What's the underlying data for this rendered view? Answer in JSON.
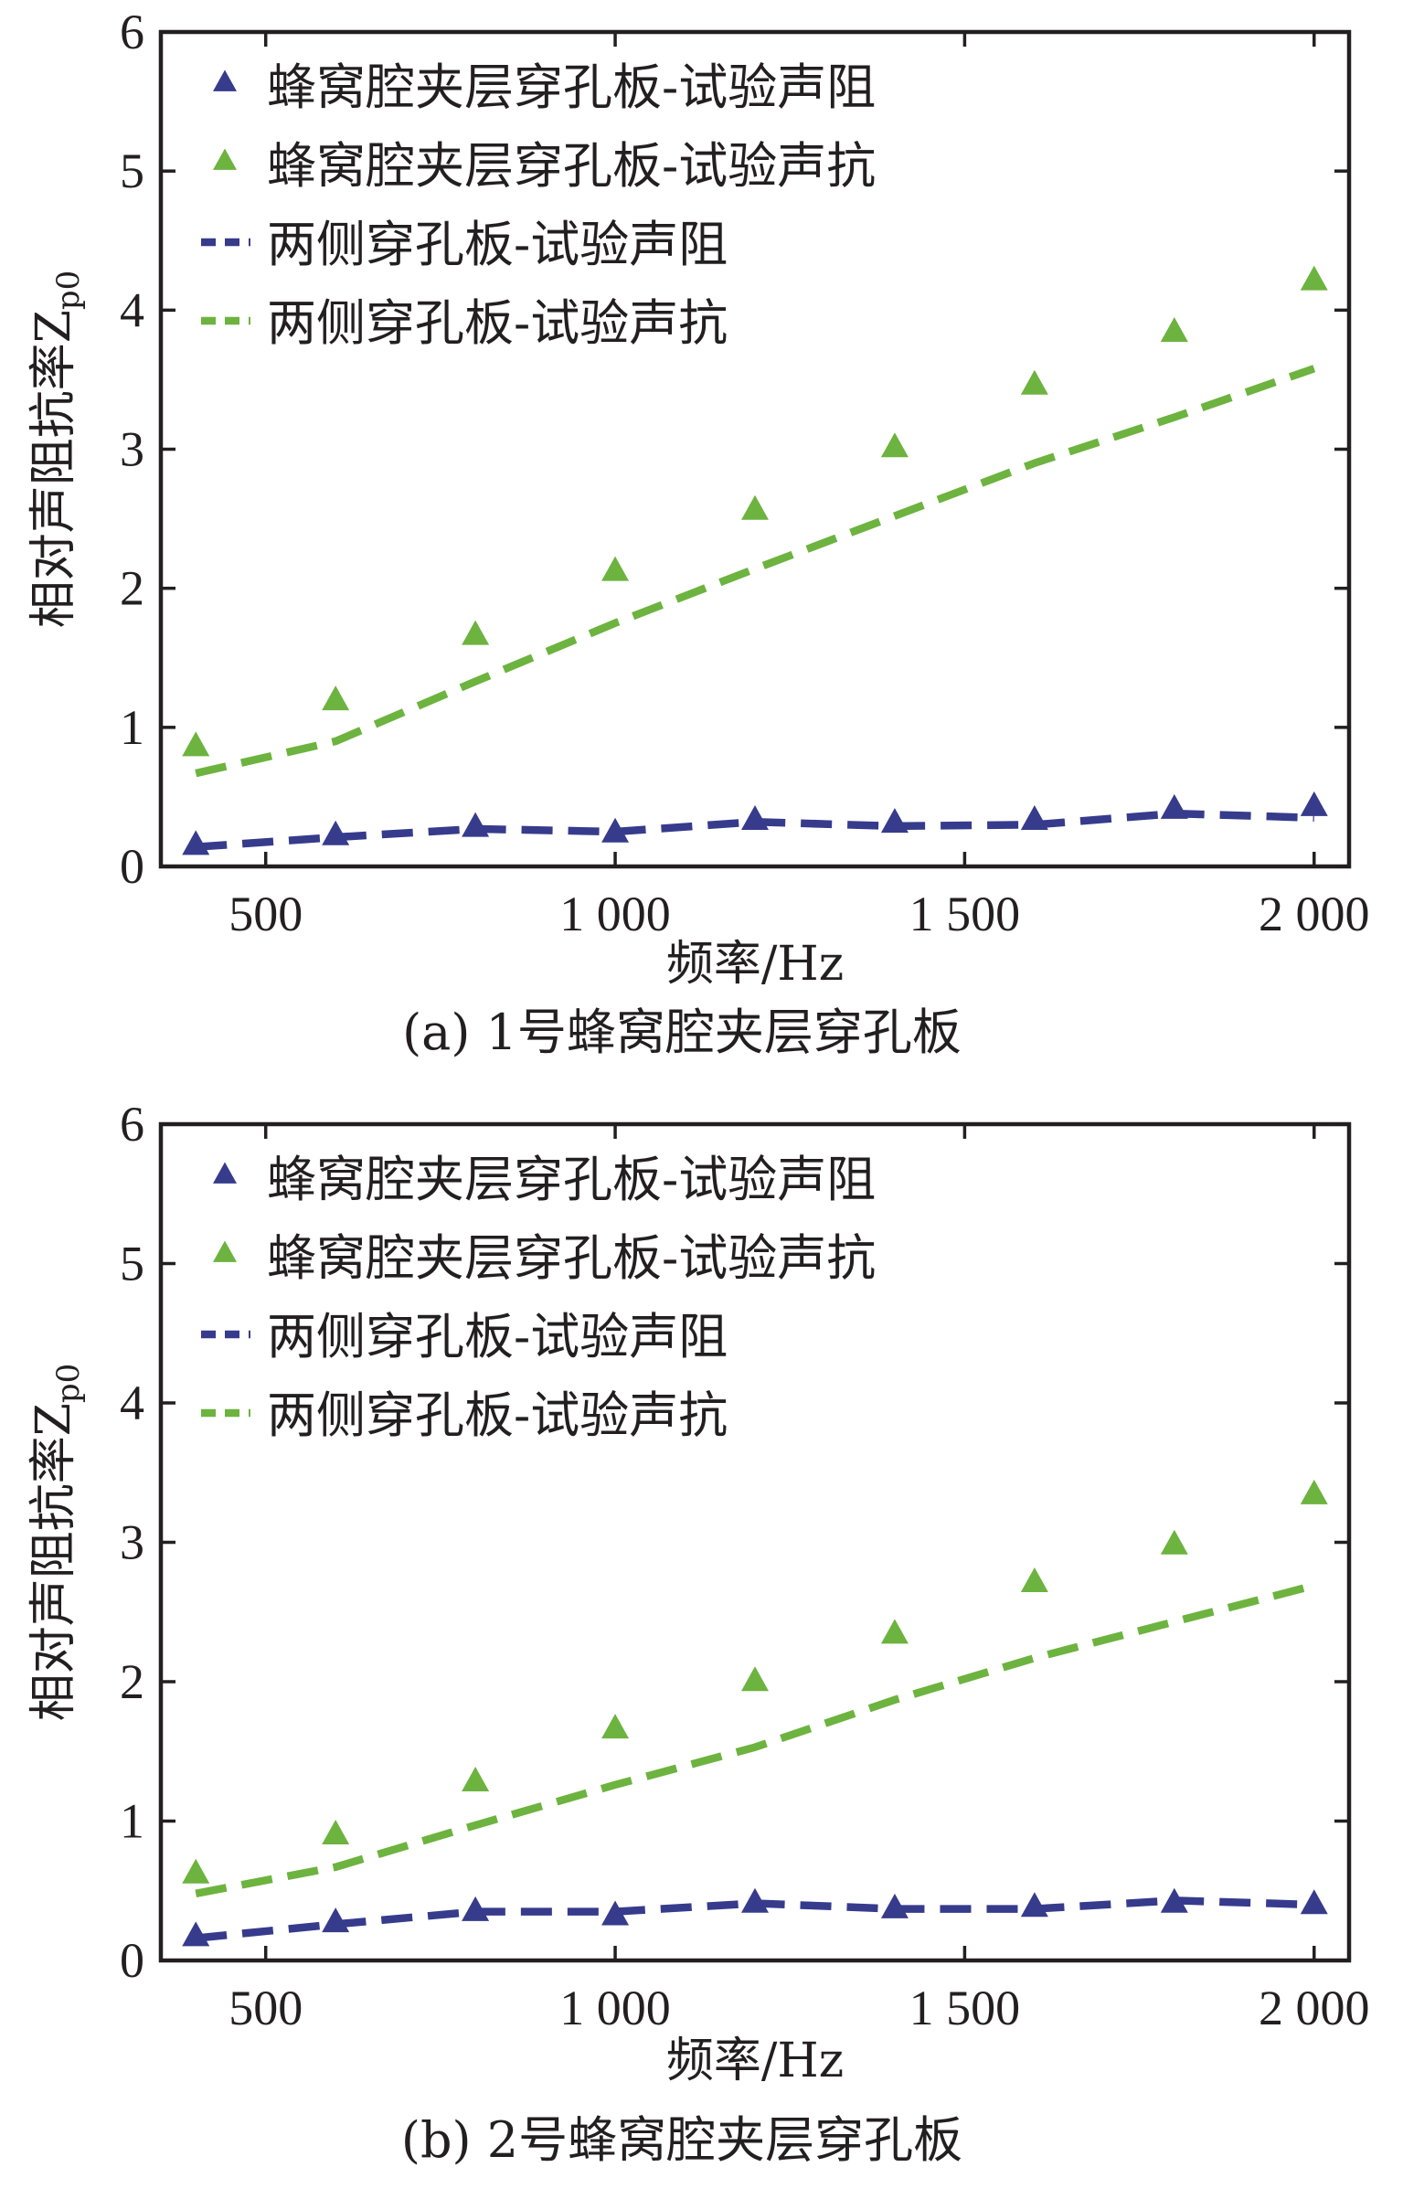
{
  "colors": {
    "blue": "#363b8c",
    "green": "#6db33f",
    "axis": "#231f20"
  },
  "chart_data": [
    {
      "type": "line",
      "caption": "(a) 1号蜂窝腔夹层穿孔板",
      "xlabel": "频率/Hz",
      "ylabel": "相对声阻抗率Z",
      "ylabel_sub": "p0",
      "xlim": [
        350,
        2050
      ],
      "ylim": [
        0,
        6
      ],
      "xticks": [
        500,
        1000,
        1500,
        2000
      ],
      "xtick_labels": [
        "500",
        "1 000",
        "1 500",
        "2 000"
      ],
      "yticks": [
        0,
        1,
        2,
        3,
        4,
        5,
        6
      ],
      "ytick_labels": [
        "0",
        "1",
        "2",
        "3",
        "4",
        "5",
        "6"
      ],
      "legend_position": "top-left",
      "x": [
        400,
        600,
        800,
        1000,
        1200,
        1400,
        1600,
        1800,
        2000
      ],
      "series": [
        {
          "name": "蜂窝腔夹层穿孔板-试验声阻",
          "style": "triangle",
          "color": "blue",
          "values": [
            0.15,
            0.22,
            0.28,
            0.24,
            0.33,
            0.31,
            0.33,
            0.41,
            0.43
          ]
        },
        {
          "name": "蜂窝腔夹层穿孔板-试验声抗",
          "style": "triangle",
          "color": "green",
          "values": [
            0.86,
            1.19,
            1.66,
            2.12,
            2.56,
            3.01,
            3.46,
            3.84,
            4.21
          ]
        },
        {
          "name": "两侧穿孔板-试验声阻",
          "style": "dashed",
          "color": "blue",
          "values": [
            0.14,
            0.21,
            0.27,
            0.25,
            0.32,
            0.29,
            0.3,
            0.38,
            0.35
          ]
        },
        {
          "name": "两侧穿孔板-试验声抗",
          "style": "dashed",
          "color": "green",
          "values": [
            0.67,
            0.9,
            1.33,
            1.75,
            2.14,
            2.52,
            2.9,
            3.23,
            3.58
          ]
        }
      ]
    },
    {
      "type": "line",
      "caption": "(b) 2号蜂窝腔夹层穿孔板",
      "xlabel": "频率/Hz",
      "ylabel": "相对声阻抗率Z",
      "ylabel_sub": "p0",
      "xlim": [
        350,
        2050
      ],
      "ylim": [
        0,
        6
      ],
      "xticks": [
        500,
        1000,
        1500,
        2000
      ],
      "xtick_labels": [
        "500",
        "1 000",
        "1 500",
        "2 000"
      ],
      "yticks": [
        0,
        1,
        2,
        3,
        4,
        5,
        6
      ],
      "ytick_labels": [
        "0",
        "1",
        "2",
        "3",
        "4",
        "5",
        "6"
      ],
      "legend_position": "top-left",
      "x": [
        400,
        600,
        800,
        1000,
        1200,
        1400,
        1600,
        1800,
        2000
      ],
      "series": [
        {
          "name": "蜂窝腔夹层穿孔板-试验声阻",
          "style": "triangle",
          "color": "blue",
          "values": [
            0.17,
            0.27,
            0.35,
            0.32,
            0.41,
            0.37,
            0.38,
            0.41,
            0.4
          ]
        },
        {
          "name": "蜂窝腔夹层穿孔板-试验声抗",
          "style": "triangle",
          "color": "green",
          "values": [
            0.62,
            0.9,
            1.28,
            1.66,
            2.0,
            2.34,
            2.71,
            2.98,
            3.34
          ]
        },
        {
          "name": "两侧穿孔板-试验声阻",
          "style": "dashed",
          "color": "blue",
          "values": [
            0.16,
            0.26,
            0.35,
            0.35,
            0.41,
            0.37,
            0.37,
            0.43,
            0.4
          ]
        },
        {
          "name": "两侧穿孔板-试验声抗",
          "style": "dashed",
          "color": "green",
          "values": [
            0.48,
            0.67,
            0.97,
            1.26,
            1.53,
            1.87,
            2.17,
            2.43,
            2.69
          ]
        }
      ]
    }
  ]
}
